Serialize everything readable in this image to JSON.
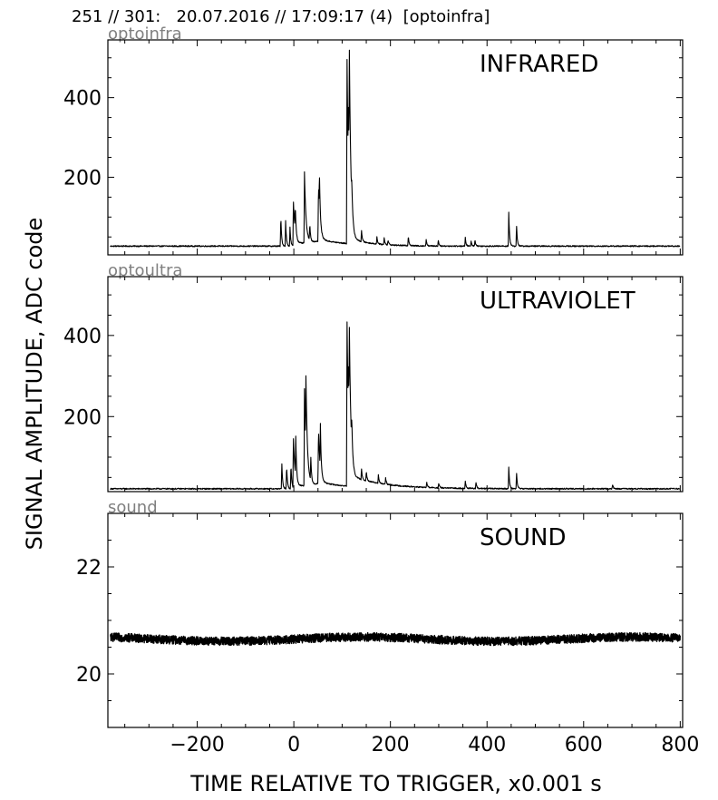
{
  "header": "251 // 301:   20.07.2016 // 17:09:17 (4)  [optoinfra]",
  "ylabel": "SIGNAL AMPLITUDE,  ADC code",
  "xlabel": "TIME RELATIVE TO TRIGGER,   x0.001 s",
  "chart_data": [
    {
      "type": "line",
      "channel": "optoinfra",
      "title": "INFRARED",
      "xlim": [
        -385,
        805
      ],
      "ylim": [
        5,
        545
      ],
      "yticks": [
        200,
        400
      ],
      "xticks": [
        -200,
        0,
        200,
        400,
        600,
        800
      ],
      "baseline": 27,
      "peaks": [
        {
          "x": -27,
          "y": 105
        },
        {
          "x": -17,
          "y": 90
        },
        {
          "x": -8,
          "y": 75
        },
        {
          "x": -1,
          "y": 145
        },
        {
          "x": 3,
          "y": 95
        },
        {
          "x": 22,
          "y": 205
        },
        {
          "x": 33,
          "y": 70
        },
        {
          "x": 51,
          "y": 172
        },
        {
          "x": 53,
          "y": 125
        },
        {
          "x": 110,
          "y": 495
        },
        {
          "x": 113,
          "y": 185
        },
        {
          "x": 115,
          "y": 310
        },
        {
          "x": 120,
          "y": 80
        },
        {
          "x": 140,
          "y": 58
        },
        {
          "x": 172,
          "y": 45
        },
        {
          "x": 187,
          "y": 45
        },
        {
          "x": 195,
          "y": 40
        },
        {
          "x": 237,
          "y": 53
        },
        {
          "x": 274,
          "y": 44
        },
        {
          "x": 299,
          "y": 43
        },
        {
          "x": 355,
          "y": 48
        },
        {
          "x": 367,
          "y": 40
        },
        {
          "x": 375,
          "y": 44
        },
        {
          "x": 445,
          "y": 113
        },
        {
          "x": 461,
          "y": 84
        }
      ]
    },
    {
      "type": "line",
      "channel": "optoultra",
      "title": "ULTRAVIOLET",
      "xlim": [
        -385,
        805
      ],
      "ylim": [
        15,
        545
      ],
      "yticks": [
        200,
        400
      ],
      "xticks": [
        -200,
        0,
        200,
        400,
        600,
        800
      ],
      "baseline": 22,
      "peaks": [
        {
          "x": -25,
          "y": 90
        },
        {
          "x": -15,
          "y": 80
        },
        {
          "x": -6,
          "y": 85
        },
        {
          "x": -1,
          "y": 150
        },
        {
          "x": 4,
          "y": 120
        },
        {
          "x": 22,
          "y": 260
        },
        {
          "x": 25,
          "y": 200
        },
        {
          "x": 35,
          "y": 85
        },
        {
          "x": 51,
          "y": 160
        },
        {
          "x": 55,
          "y": 130
        },
        {
          "x": 110,
          "y": 415
        },
        {
          "x": 113,
          "y": 145
        },
        {
          "x": 115,
          "y": 232
        },
        {
          "x": 120,
          "y": 95
        },
        {
          "x": 140,
          "y": 50
        },
        {
          "x": 150,
          "y": 48
        },
        {
          "x": 175,
          "y": 42
        },
        {
          "x": 190,
          "y": 38
        },
        {
          "x": 275,
          "y": 36
        },
        {
          "x": 300,
          "y": 34
        },
        {
          "x": 355,
          "y": 40
        },
        {
          "x": 377,
          "y": 38
        },
        {
          "x": 445,
          "y": 75
        },
        {
          "x": 461,
          "y": 65
        },
        {
          "x": 660,
          "y": 33
        }
      ]
    },
    {
      "type": "line",
      "channel": "sound",
      "title": "SOUND",
      "xlim": [
        -385,
        805
      ],
      "ylim": [
        19,
        23
      ],
      "yticks": [
        20,
        22
      ],
      "xticks": [
        -200,
        0,
        200,
        400,
        600,
        800
      ],
      "baseline": 20.65,
      "peaks": []
    }
  ]
}
